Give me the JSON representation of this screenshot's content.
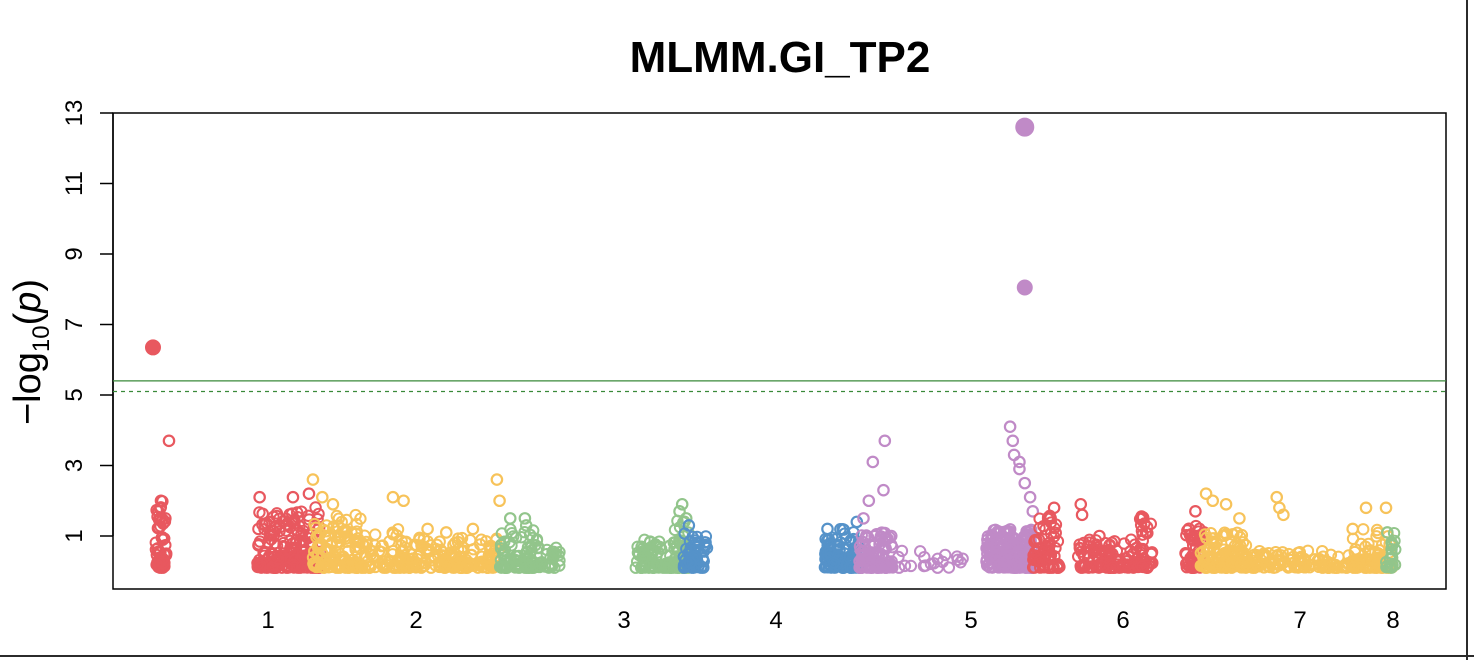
{
  "chart_data": {
    "type": "scatter",
    "title": "MLMM.GI_TP2",
    "ylabel": "−log10(p)",
    "ylabel_parts": {
      "prefix": "−log",
      "sub": "10",
      "open": "(",
      "var": "p",
      "close": ")"
    },
    "ylim": [
      0,
      13
    ],
    "yticks": [
      1,
      3,
      5,
      7,
      9,
      11,
      13
    ],
    "xticks": [
      "1",
      "2",
      "3",
      "4",
      "5",
      "6",
      "7",
      "8"
    ],
    "thresholds": [
      {
        "name": "solid",
        "value": 5.4,
        "color": "#3a8a3a",
        "style": "solid"
      },
      {
        "name": "dashed",
        "value": 5.1,
        "color": "#3a8a3a",
        "style": "dashed"
      }
    ],
    "colors": {
      "red": "#e8585f",
      "yellow": "#f7c35a",
      "green": "#92c58b",
      "blue": "#5592c9",
      "purple": "#c08ac7"
    },
    "highlighted_points": [
      {
        "x": 0.03,
        "y": 6.35,
        "color": "red"
      },
      {
        "x": 0.684,
        "y": 12.6,
        "color": "purple"
      },
      {
        "x": 0.684,
        "y": 8.05,
        "color": "purple"
      }
    ],
    "clusters": [
      {
        "color": "red",
        "x0": 0.032,
        "x1": 0.04,
        "ymax": 2.0,
        "tall": [
          [
            0.042,
            3.7
          ],
          [
            0.036,
            2.0
          ],
          [
            0.034,
            1.7
          ]
        ],
        "n": 55
      },
      {
        "color": "red",
        "x0": 0.108,
        "x1": 0.15,
        "ymax": 1.7,
        "tall": [
          [
            0.11,
            2.1
          ],
          [
            0.135,
            2.1
          ],
          [
            0.147,
            2.2
          ]
        ],
        "n": 170
      },
      {
        "color": "red",
        "x0": 0.15,
        "x1": 0.156,
        "ymax": 1.9,
        "tall": [],
        "n": 30
      },
      {
        "color": "yellow",
        "x0": 0.15,
        "x1": 0.186,
        "ymax": 1.6,
        "tall": [
          [
            0.15,
            2.6
          ],
          [
            0.157,
            2.1
          ],
          [
            0.165,
            1.9
          ]
        ],
        "n": 130
      },
      {
        "color": "yellow",
        "x0": 0.186,
        "x1": 0.222,
        "ymax": 1.3,
        "tall": [
          [
            0.21,
            2.1
          ]
        ],
        "n": 60
      },
      {
        "color": "yellow",
        "x0": 0.214,
        "x1": 0.29,
        "ymax": 1.0,
        "tall": [
          [
            0.218,
            2.0
          ],
          [
            0.236,
            1.2
          ],
          [
            0.25,
            1.1
          ],
          [
            0.27,
            1.2
          ],
          [
            0.288,
            2.6
          ],
          [
            0.29,
            2.0
          ]
        ],
        "n": 170
      },
      {
        "color": "green",
        "x0": 0.29,
        "x1": 0.32,
        "ymax": 1.2,
        "tall": [
          [
            0.298,
            1.5
          ],
          [
            0.309,
            1.5
          ],
          [
            0.31,
            1.3
          ]
        ],
        "n": 90
      },
      {
        "color": "green",
        "x0": 0.32,
        "x1": 0.335,
        "ymax": 0.8,
        "tall": [],
        "n": 25
      },
      {
        "color": "green",
        "x0": 0.392,
        "x1": 0.432,
        "ymax": 0.9,
        "tall": [
          [
            0.425,
            1.7
          ],
          [
            0.43,
            1.5
          ]
        ],
        "n": 110
      },
      {
        "color": "green",
        "x0": 0.42,
        "x1": 0.432,
        "ymax": 1.6,
        "tall": [
          [
            0.427,
            1.9
          ]
        ],
        "n": 30
      },
      {
        "color": "blue",
        "x0": 0.428,
        "x1": 0.446,
        "ymax": 1.1,
        "tall": [
          [
            0.432,
            1.3
          ]
        ],
        "n": 60
      },
      {
        "color": "blue",
        "x0": 0.534,
        "x1": 0.56,
        "ymax": 1.2,
        "tall": [
          [
            0.536,
            1.2
          ],
          [
            0.558,
            1.4
          ]
        ],
        "n": 110
      },
      {
        "color": "purple",
        "x0": 0.56,
        "x1": 0.585,
        "ymax": 1.1,
        "tall": [
          [
            0.563,
            1.5
          ],
          [
            0.567,
            2.0
          ],
          [
            0.57,
            3.1
          ],
          [
            0.579,
            3.7
          ],
          [
            0.578,
            2.3
          ]
        ],
        "n": 100
      },
      {
        "color": "purple",
        "x0": 0.585,
        "x1": 0.64,
        "ymax": 0.6,
        "tall": [],
        "n": 20
      },
      {
        "color": "purple",
        "x0": 0.655,
        "x1": 0.69,
        "ymax": 1.2,
        "tall": [
          [
            0.673,
            4.1
          ],
          [
            0.675,
            3.7
          ],
          [
            0.676,
            3.3
          ],
          [
            0.68,
            2.9
          ],
          [
            0.684,
            2.5
          ],
          [
            0.688,
            2.1
          ],
          [
            0.69,
            1.7
          ],
          [
            0.68,
            3.1
          ]
        ],
        "n": 220
      },
      {
        "color": "red",
        "x0": 0.69,
        "x1": 0.71,
        "ymax": 1.6,
        "tall": [
          [
            0.706,
            1.8
          ]
        ],
        "n": 70
      },
      {
        "color": "red",
        "x0": 0.724,
        "x1": 0.77,
        "ymax": 0.9,
        "tall": [
          [
            0.726,
            1.9
          ],
          [
            0.727,
            1.6
          ],
          [
            0.74,
            1.0
          ]
        ],
        "n": 110
      },
      {
        "color": "red",
        "x0": 0.77,
        "x1": 0.78,
        "ymax": 1.7,
        "tall": [],
        "n": 35
      },
      {
        "color": "red",
        "x0": 0.804,
        "x1": 0.82,
        "ymax": 1.3,
        "tall": [
          [
            0.812,
            1.7
          ]
        ],
        "n": 55
      },
      {
        "color": "yellow",
        "x0": 0.816,
        "x1": 0.85,
        "ymax": 1.1,
        "tall": [
          [
            0.82,
            2.2
          ],
          [
            0.825,
            2.0
          ],
          [
            0.835,
            1.9
          ],
          [
            0.845,
            1.5
          ]
        ],
        "n": 120
      },
      {
        "color": "yellow",
        "x0": 0.85,
        "x1": 0.96,
        "ymax": 0.6,
        "tall": [
          [
            0.873,
            2.1
          ],
          [
            0.875,
            1.8
          ],
          [
            0.878,
            1.6
          ],
          [
            0.93,
            1.2
          ]
        ],
        "n": 150
      },
      {
        "color": "yellow",
        "x0": 0.93,
        "x1": 0.96,
        "ymax": 1.2,
        "tall": [
          [
            0.94,
            1.8
          ],
          [
            0.955,
            1.8
          ]
        ],
        "n": 45
      },
      {
        "color": "green",
        "x0": 0.955,
        "x1": 0.962,
        "ymax": 1.2,
        "tall": [
          [
            0.956,
            1.1
          ]
        ],
        "n": 20
      }
    ]
  }
}
